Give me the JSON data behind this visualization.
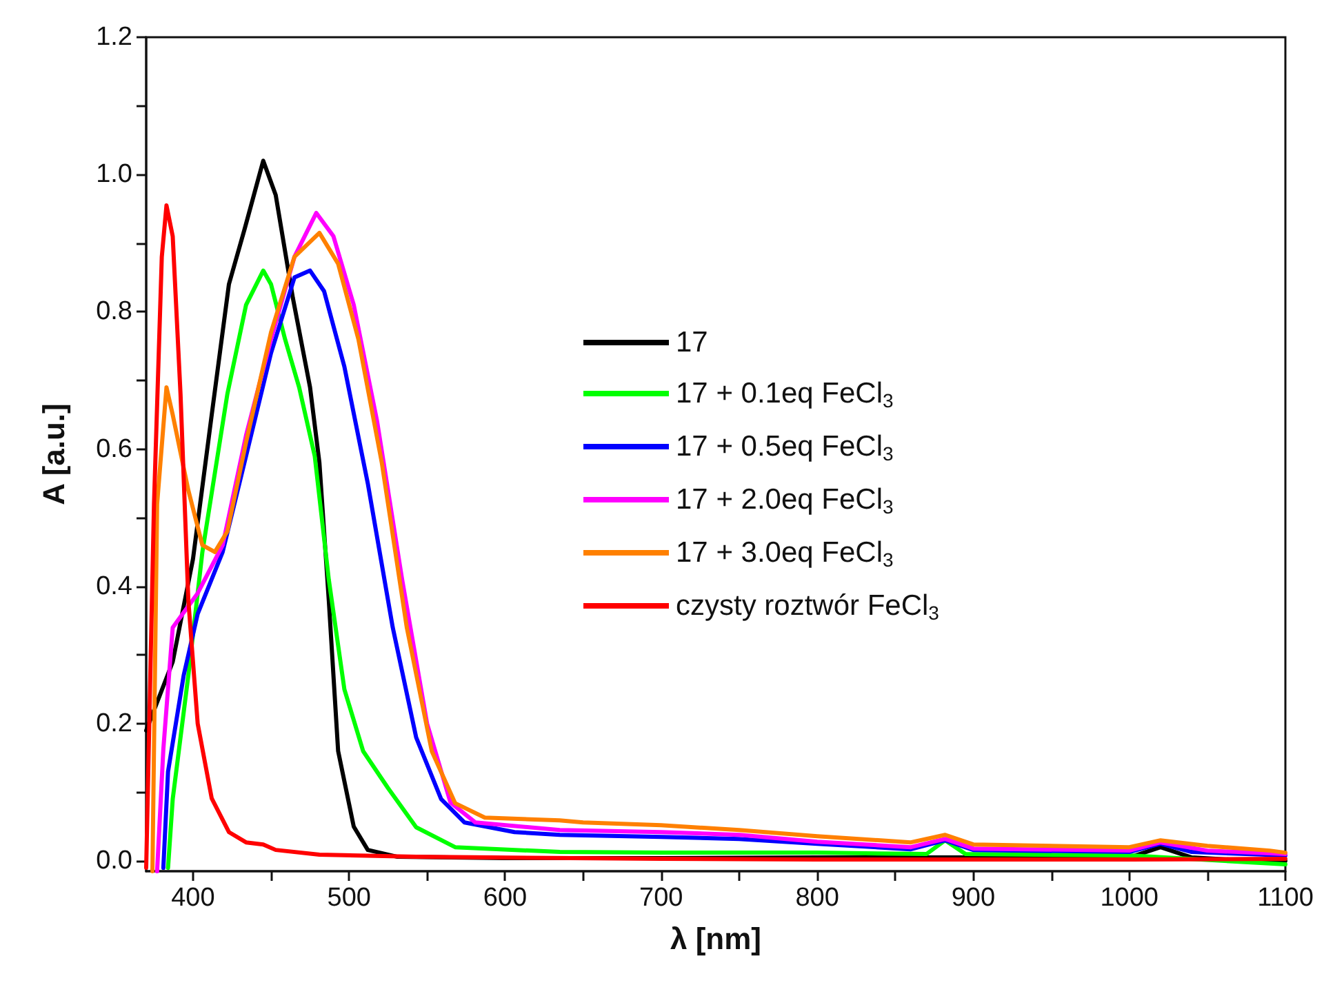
{
  "chart_data": {
    "type": "line",
    "xlabel": "λ [nm]",
    "ylabel": "A [a.u.]",
    "xlim": [
      370,
      1100
    ],
    "ylim": [
      -0.015,
      1.2
    ],
    "xticks": [
      400,
      {
        "value": 450,
        "label": null
      },
      500,
      {
        "value": 550,
        "label": null
      },
      600,
      {
        "value": 650,
        "label": null
      },
      700,
      {
        "value": 750,
        "label": null
      },
      800,
      {
        "value": 850,
        "label": null
      },
      900,
      {
        "value": 950,
        "label": null
      },
      1000,
      {
        "value": 1050,
        "label": null
      },
      1100
    ],
    "yticks": [
      {
        "value": 0,
        "label": "0.0"
      },
      {
        "value": 0.1,
        "label": null
      },
      0.2,
      {
        "value": 0.3,
        "label": null
      },
      0.4,
      {
        "value": 0.5,
        "label": null
      },
      0.6,
      {
        "value": 0.7,
        "label": null
      },
      0.8,
      {
        "value": 0.9,
        "label": null
      },
      {
        "value": 1,
        "label": "1.0"
      },
      {
        "value": 1.1,
        "label": null
      },
      1.2
    ],
    "grid": false,
    "legend": "right",
    "marker": "none",
    "line_style": "solid",
    "series": [
      {
        "name": "17",
        "color": "#000000",
        "x": [
          370,
          387,
          400,
          412,
          423,
          433,
          445,
          453,
          464,
          475,
          481,
          487,
          493,
          503,
          512,
          531,
          600,
          700,
          800,
          870,
          1000,
          1020,
          1040,
          1080,
          1100
        ],
        "values": [
          0.19,
          0.29,
          0.44,
          0.65,
          0.84,
          0.92,
          1.02,
          0.97,
          0.82,
          0.69,
          0.58,
          0.38,
          0.16,
          0.05,
          0.016,
          0.006,
          0.004,
          0.004,
          0.005,
          0.005,
          0.005,
          0.02,
          0.005,
          0.0,
          0.0
        ]
      },
      {
        "name": "17 + 0.1eq FeCl$_{3}$",
        "color": "#00ff00",
        "x": [
          384,
          387,
          397,
          406,
          422,
          434,
          445,
          450,
          459,
          468,
          478,
          487,
          497,
          509,
          525,
          543,
          568,
          635,
          700,
          800,
          870,
          882,
          895,
          1000,
          1100
        ],
        "values": [
          -0.01,
          0.09,
          0.27,
          0.45,
          0.68,
          0.81,
          0.86,
          0.84,
          0.76,
          0.69,
          0.59,
          0.41,
          0.25,
          0.16,
          0.106,
          0.049,
          0.02,
          0.013,
          0.012,
          0.012,
          0.01,
          0.03,
          0.01,
          0.008,
          -0.005
        ]
      },
      {
        "name": "17 + 0.5eq FeCl$_{3}$",
        "color": "#0000ff",
        "x": [
          381,
          384,
          394,
          403,
          419,
          434,
          450,
          465,
          475,
          484,
          497,
          512,
          528,
          543,
          559,
          574,
          606,
          635,
          700,
          750,
          800,
          860,
          882,
          900,
          1000,
          1020,
          1040,
          1100
        ],
        "values": [
          -0.01,
          0.13,
          0.27,
          0.36,
          0.45,
          0.59,
          0.74,
          0.85,
          0.86,
          0.83,
          0.72,
          0.55,
          0.34,
          0.18,
          0.09,
          0.056,
          0.042,
          0.038,
          0.035,
          0.032,
          0.025,
          0.017,
          0.03,
          0.016,
          0.013,
          0.025,
          0.013,
          0.008
        ]
      },
      {
        "name": "17 + 2.0eq FeCl$_{3}$",
        "color": "#ff00ff",
        "x": [
          377,
          381,
          387,
          403,
          419,
          434,
          450,
          465,
          479,
          490,
          503,
          518,
          534,
          550,
          565,
          581,
          635,
          700,
          750,
          800,
          860,
          882,
          900,
          1000,
          1020,
          1050,
          1100
        ],
        "values": [
          -0.015,
          0.163,
          0.34,
          0.39,
          0.46,
          0.62,
          0.76,
          0.88,
          0.944,
          0.91,
          0.81,
          0.64,
          0.41,
          0.2,
          0.085,
          0.056,
          0.045,
          0.042,
          0.038,
          0.028,
          0.02,
          0.032,
          0.018,
          0.015,
          0.027,
          0.015,
          0.01
        ]
      },
      {
        "name": "17 + 3.0eq FeCl$_{3}$",
        "color": "#ff8000",
        "x": [
          374,
          377,
          383,
          387,
          397,
          406,
          414,
          422,
          434,
          450,
          465,
          481,
          493,
          506,
          521,
          537,
          553,
          568,
          587,
          635,
          650,
          700,
          750,
          800,
          860,
          882,
          900,
          1000,
          1020,
          1050,
          1090,
          1100
        ],
        "values": [
          -0.015,
          0.52,
          0.69,
          0.65,
          0.54,
          0.46,
          0.45,
          0.48,
          0.61,
          0.77,
          0.88,
          0.915,
          0.87,
          0.76,
          0.58,
          0.34,
          0.16,
          0.084,
          0.063,
          0.059,
          0.056,
          0.052,
          0.045,
          0.036,
          0.027,
          0.038,
          0.024,
          0.02,
          0.03,
          0.022,
          0.015,
          0.012
        ]
      },
      {
        "name": "czysty roztwór FeCl$_{3}$",
        "color": "#ff0000",
        "x": [
          370,
          375,
          380,
          383,
          387,
          392,
          397,
          403,
          412,
          423,
          434,
          445,
          453,
          481,
          543,
          700,
          800,
          900,
          1000,
          1100
        ],
        "values": [
          -0.01,
          0.52,
          0.88,
          0.955,
          0.91,
          0.68,
          0.38,
          0.2,
          0.091,
          0.042,
          0.027,
          0.024,
          0.016,
          0.009,
          0.006,
          0.003,
          0.002,
          0.002,
          0.002,
          0.003
        ]
      }
    ]
  }
}
